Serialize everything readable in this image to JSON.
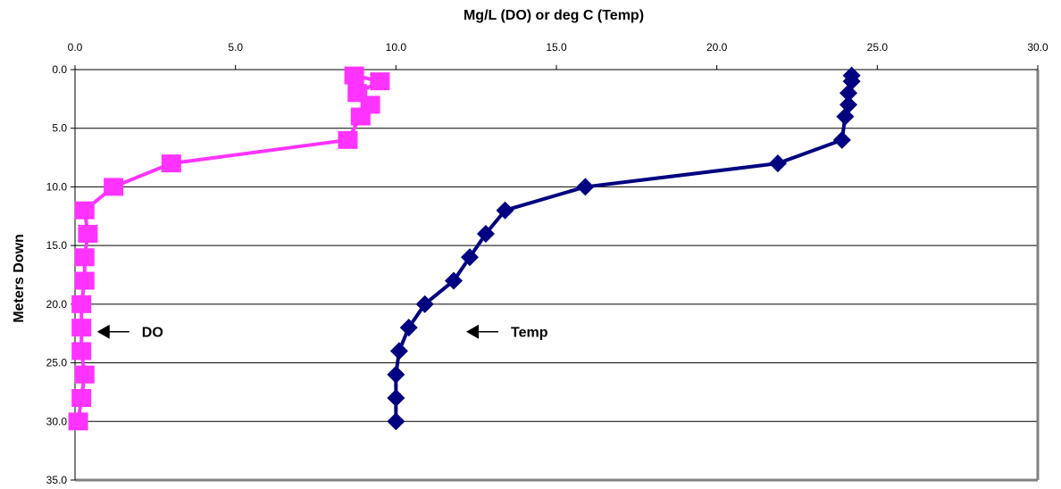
{
  "chart_data": {
    "type": "scatter",
    "title": "",
    "xlabel": "Mg/L (DO) or deg C (Temp)",
    "ylabel": "Meters Down",
    "xlim": [
      0,
      30
    ],
    "ylim": [
      0,
      35
    ],
    "x_axis_position": "top",
    "y_axis_inverted": true,
    "x_ticks": [
      "0.0",
      "5.0",
      "10.0",
      "15.0",
      "20.0",
      "25.0",
      "30.0"
    ],
    "y_ticks": [
      "0.0",
      "5.0",
      "10.0",
      "15.0",
      "20.0",
      "25.0",
      "30.0",
      "35.0"
    ],
    "grid": "horizontal",
    "legend": "none",
    "series": [
      {
        "id": "DO",
        "color": "#ff33ff",
        "marker": "square",
        "x": [
          8.7,
          9.5,
          8.8,
          9.2,
          8.9,
          8.5,
          3.0,
          1.2,
          0.3,
          0.4,
          0.3,
          0.3,
          0.2,
          0.2,
          0.2,
          0.3,
          0.2,
          0.1
        ],
        "y": [
          0.5,
          1.0,
          2.0,
          3.0,
          4.0,
          6.0,
          8.0,
          10.0,
          12.0,
          14.0,
          16.0,
          18.0,
          20.0,
          22.0,
          24.0,
          26.0,
          28.0,
          30.0
        ]
      },
      {
        "id": "Temp",
        "color": "#000080",
        "marker": "diamond",
        "x": [
          24.2,
          24.2,
          24.1,
          24.1,
          24.0,
          23.9,
          21.9,
          15.9,
          13.4,
          12.8,
          12.3,
          11.8,
          10.9,
          10.4,
          10.1,
          10.0,
          10.0,
          10.0
        ],
        "y": [
          0.5,
          1.0,
          2.0,
          3.0,
          4.0,
          6.0,
          8.0,
          10.0,
          12.0,
          14.0,
          16.0,
          18.0,
          20.0,
          22.0,
          24.0,
          26.0,
          28.0,
          30.0
        ]
      }
    ],
    "annotations": [
      {
        "text": "DO",
        "x": 0.3,
        "y": 22.5
      },
      {
        "text": "Temp",
        "x": 11.8,
        "y": 22.5
      }
    ]
  }
}
